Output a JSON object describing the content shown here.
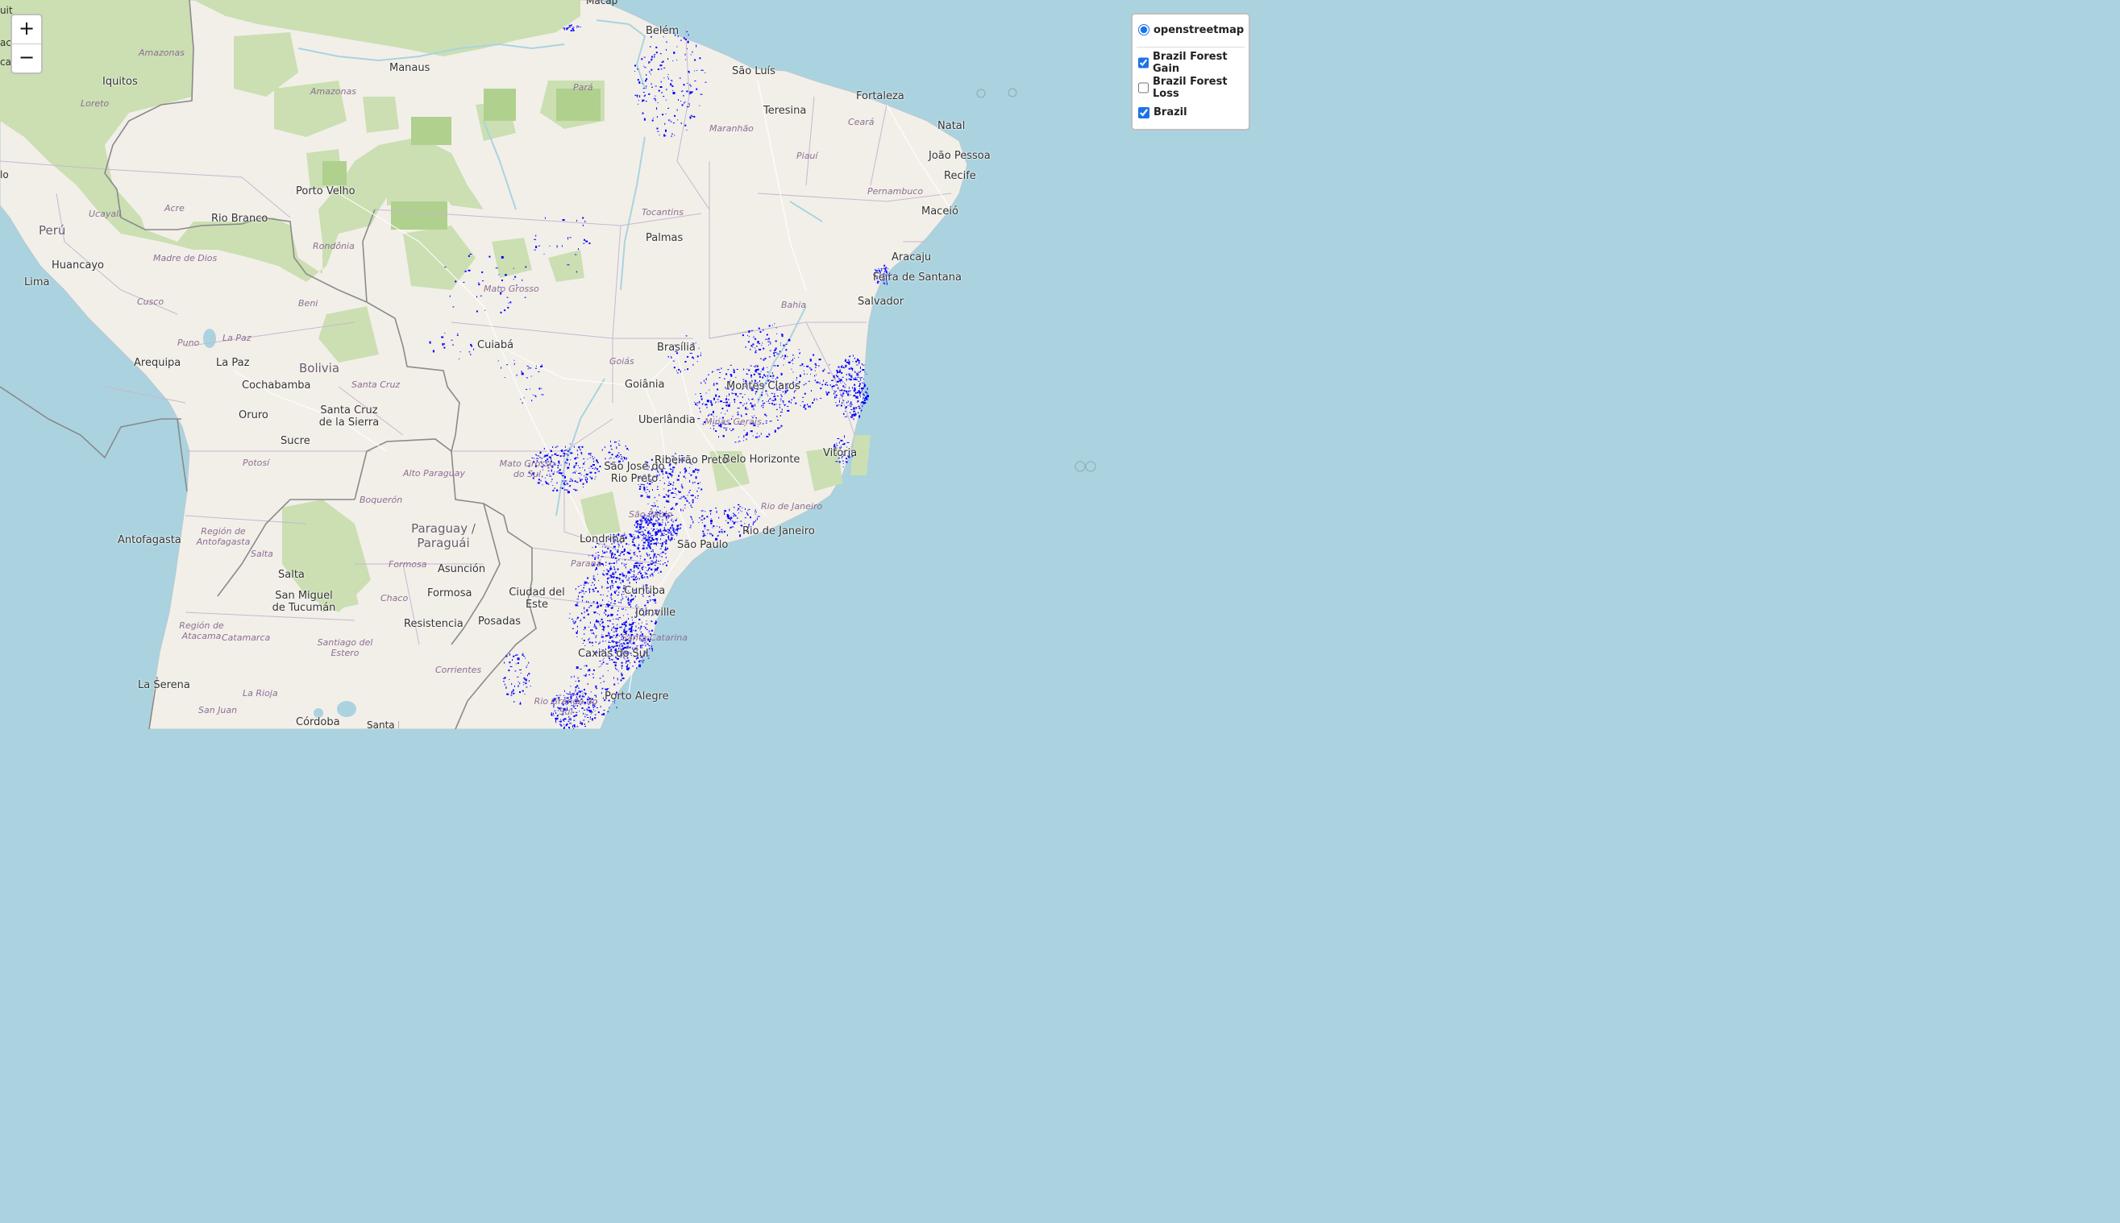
{
  "map": {
    "base_layer": "openstreetmap",
    "colors": {
      "water": "#aad3df",
      "land": "#f2efe9",
      "forest": "#cbdfb2",
      "forest_dark": "#add19e",
      "border": "#8a8a8a",
      "state_border": "#c8b6cf",
      "road": "#ffffff",
      "forest_gain": "#0000ff"
    },
    "country_labels": [
      {
        "name": "Perú"
      },
      {
        "name": "Bolivia"
      },
      {
        "name": "Paraguay / Paraguái"
      }
    ],
    "city_labels": [
      {
        "name": "Belém"
      },
      {
        "name": "Manaus"
      },
      {
        "name": "Iquitos"
      },
      {
        "name": "São Luís"
      },
      {
        "name": "Fortaleza"
      },
      {
        "name": "Teresina"
      },
      {
        "name": "Natal"
      },
      {
        "name": "João Pessoa"
      },
      {
        "name": "Recife"
      },
      {
        "name": "Maceió"
      },
      {
        "name": "Aracaju"
      },
      {
        "name": "Feira de Santana"
      },
      {
        "name": "Salvador"
      },
      {
        "name": "Porto Velho"
      },
      {
        "name": "Rio Branco"
      },
      {
        "name": "Palmas"
      },
      {
        "name": "Huancayo"
      },
      {
        "name": "Lima"
      },
      {
        "name": "Cuiabá"
      },
      {
        "name": "Brasília"
      },
      {
        "name": "Goiânia"
      },
      {
        "name": "Arequipa"
      },
      {
        "name": "La Paz"
      },
      {
        "name": "Cochabamba"
      },
      {
        "name": "Oruro"
      },
      {
        "name": "Santa Cruz de la Sierra"
      },
      {
        "name": "Sucre"
      },
      {
        "name": "Montes Claros"
      },
      {
        "name": "Uberlândia"
      },
      {
        "name": "Belo Horizonte"
      },
      {
        "name": "Vitória"
      },
      {
        "name": "São José do Rio Preto"
      },
      {
        "name": "Ribeirão Preto"
      },
      {
        "name": "Rio de Janeiro"
      },
      {
        "name": "São Paulo"
      },
      {
        "name": "Londrina"
      },
      {
        "name": "Antofagasta"
      },
      {
        "name": "Salta"
      },
      {
        "name": "Asunción"
      },
      {
        "name": "Formosa"
      },
      {
        "name": "Ciudad del Este"
      },
      {
        "name": "Curitiba"
      },
      {
        "name": "San Miguel de Tucumán"
      },
      {
        "name": "Resistencia"
      },
      {
        "name": "Posadas"
      },
      {
        "name": "Joinville"
      },
      {
        "name": "Caxias do Sul"
      },
      {
        "name": "La Serena"
      },
      {
        "name": "Porto Alegre"
      },
      {
        "name": "Córdoba"
      }
    ],
    "region_labels": [
      {
        "name": "Amazonas"
      },
      {
        "name": "Loreto"
      },
      {
        "name": "Amazonas"
      },
      {
        "name": "Pará"
      },
      {
        "name": "Maranhão"
      },
      {
        "name": "Ceará"
      },
      {
        "name": "Piauí"
      },
      {
        "name": "Pernambuco"
      },
      {
        "name": "Ucayali"
      },
      {
        "name": "Acre"
      },
      {
        "name": "Rondônia"
      },
      {
        "name": "Tocantins"
      },
      {
        "name": "Madre de Dios"
      },
      {
        "name": "Mato Grosso"
      },
      {
        "name": "Bahia"
      },
      {
        "name": "Cusco"
      },
      {
        "name": "Beni"
      },
      {
        "name": "Puno"
      },
      {
        "name": "La Paz"
      },
      {
        "name": "Goiás"
      },
      {
        "name": "Santa Cruz"
      },
      {
        "name": "Minas Gerais"
      },
      {
        "name": "Mato Grosso do Sul"
      },
      {
        "name": "Alto Paraguay"
      },
      {
        "name": "Potosí"
      },
      {
        "name": "Boquerón"
      },
      {
        "name": "Rio de Janeiro"
      },
      {
        "name": "São Paulo"
      },
      {
        "name": "Región de Antofagasta"
      },
      {
        "name": "Salta"
      },
      {
        "name": "Paraná"
      },
      {
        "name": "Formosa"
      },
      {
        "name": "Chaco"
      },
      {
        "name": "Región de Atacama"
      },
      {
        "name": "Catamarca"
      },
      {
        "name": "Santiago del Estero"
      },
      {
        "name": "Santa Catarina"
      },
      {
        "name": "Corrientes"
      },
      {
        "name": "La Rioja"
      },
      {
        "name": "San Juan"
      },
      {
        "name": "Rio Grande do Sul"
      }
    ],
    "edge_fragments": [
      "uit",
      "ac",
      "ca",
      "lo",
      "Macapá",
      "Santa Fe"
    ]
  },
  "zoom": {
    "in": "+",
    "out": "−"
  },
  "layers": {
    "base": [
      {
        "label": "openstreetmap",
        "checked": true
      }
    ],
    "overlays": [
      {
        "label": "Brazil Forest Gain",
        "checked": true
      },
      {
        "label": "Brazil Forest Loss",
        "checked": false
      },
      {
        "label": "Brazil",
        "checked": true
      }
    ]
  }
}
